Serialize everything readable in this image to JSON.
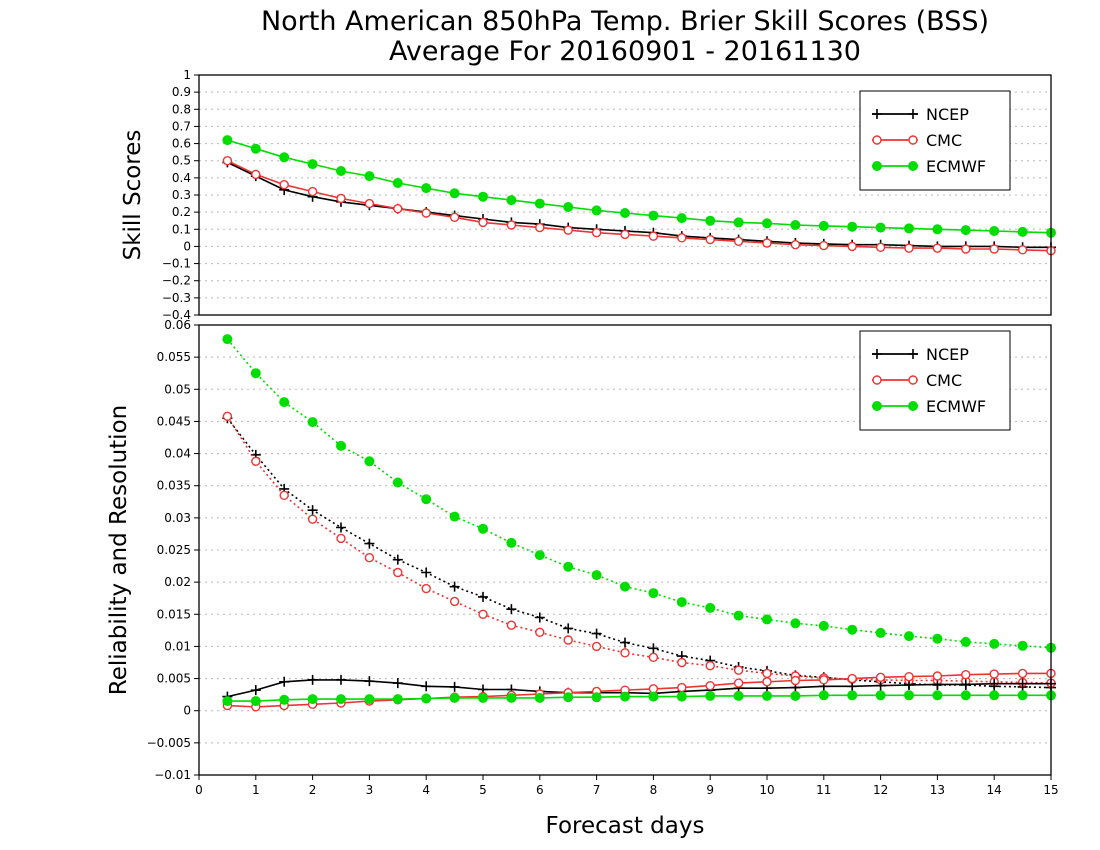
{
  "chart_data": {
    "title": "North American 850hPa Temp. Brier Skill Scores (BSS)",
    "subtitle": "Average For 20160901 - 20161130",
    "xlabel": "Forecast days",
    "x": [
      0.5,
      1,
      1.5,
      2,
      2.5,
      3,
      3.5,
      4,
      4.5,
      5,
      5.5,
      6,
      6.5,
      7,
      7.5,
      8,
      8.5,
      9,
      9.5,
      10,
      10.5,
      11,
      11.5,
      12,
      12.5,
      13,
      13.5,
      14,
      14.5,
      15
    ],
    "xlim": [
      0,
      15
    ],
    "xticks": [
      "0",
      "1",
      "2",
      "3",
      "4",
      "5",
      "6",
      "7",
      "8",
      "9",
      "10",
      "11",
      "12",
      "13",
      "14",
      "15"
    ],
    "panels": [
      {
        "type": "line",
        "ylabel": "Skill Scores",
        "ylim": [
          -0.4,
          1
        ],
        "yticks": [
          "−0.4",
          "−0.3",
          "−0.2",
          "−0.1",
          "0",
          "0.1",
          "0.2",
          "0.3",
          "0.4",
          "0.5",
          "0.6",
          "0.7",
          "0.8",
          "0.9",
          "1"
        ],
        "grid": true,
        "legend_position": "top-right",
        "series": [
          {
            "name": "NCEP",
            "color": "#000000",
            "marker": "plus",
            "line": "solid",
            "values": [
              0.49,
              0.41,
              0.33,
              0.29,
              0.26,
              0.24,
              0.22,
              0.2,
              0.18,
              0.16,
              0.14,
              0.13,
              0.11,
              0.1,
              0.09,
              0.08,
              0.06,
              0.05,
              0.04,
              0.03,
              0.02,
              0.015,
              0.01,
              0.01,
              0.005,
              0.0,
              0.0,
              0.0,
              -0.005,
              -0.005
            ]
          },
          {
            "name": "CMC",
            "color": "#ee3333",
            "marker": "open-circle",
            "line": "solid",
            "values": [
              0.5,
              0.42,
              0.36,
              0.32,
              0.28,
              0.25,
              0.22,
              0.195,
              0.17,
              0.14,
              0.125,
              0.11,
              0.095,
              0.08,
              0.07,
              0.06,
              0.05,
              0.04,
              0.03,
              0.02,
              0.01,
              0.005,
              0.0,
              -0.005,
              -0.01,
              -0.01,
              -0.015,
              -0.015,
              -0.02,
              -0.025
            ]
          },
          {
            "name": "ECMWF",
            "color": "#00dd00",
            "marker": "filled-circle",
            "line": "solid",
            "values": [
              0.62,
              0.57,
              0.52,
              0.48,
              0.44,
              0.41,
              0.37,
              0.34,
              0.31,
              0.29,
              0.27,
              0.25,
              0.23,
              0.21,
              0.195,
              0.18,
              0.165,
              0.15,
              0.14,
              0.135,
              0.125,
              0.12,
              0.115,
              0.11,
              0.105,
              0.1,
              0.095,
              0.09,
              0.085,
              0.08
            ]
          }
        ]
      },
      {
        "type": "line",
        "ylabel": "Reliability and Resolution",
        "ylim": [
          -0.01,
          0.06
        ],
        "yticks": [
          "−0.01",
          "−0.005",
          "0",
          "0.005",
          "0.01",
          "0.015",
          "0.02",
          "0.025",
          "0.03",
          "0.035",
          "0.04",
          "0.045",
          "0.05",
          "0.055",
          "0.06"
        ],
        "grid": true,
        "legend_position": "top-right",
        "series": [
          {
            "name": "NCEP",
            "role": "resolution",
            "color": "#000000",
            "marker": "plus",
            "line": "dotted",
            "values": [
              0.0455,
              0.0398,
              0.0345,
              0.0312,
              0.0285,
              0.026,
              0.0235,
              0.0215,
              0.0193,
              0.0177,
              0.0158,
              0.0145,
              0.0128,
              0.012,
              0.0106,
              0.0097,
              0.0085,
              0.0078,
              0.0068,
              0.0062,
              0.0055,
              0.0052,
              0.0048,
              0.0045,
              0.0042,
              0.004,
              0.004,
              0.0038,
              0.0037,
              0.0036
            ]
          },
          {
            "name": "CMC",
            "role": "resolution",
            "color": "#ee3333",
            "marker": "open-circle",
            "line": "dotted",
            "values": [
              0.0458,
              0.0388,
              0.0335,
              0.0298,
              0.0268,
              0.0238,
              0.0215,
              0.019,
              0.017,
              0.015,
              0.0133,
              0.0122,
              0.011,
              0.01,
              0.009,
              0.0083,
              0.0075,
              0.007,
              0.0063,
              0.0058,
              0.0054,
              0.0051,
              0.0049,
              0.0048,
              0.0047,
              0.0047,
              0.0046,
              0.0045,
              0.0044,
              0.0043
            ]
          },
          {
            "name": "ECMWF",
            "role": "resolution",
            "color": "#00dd00",
            "marker": "filled-circle",
            "line": "dotted",
            "values": [
              0.0578,
              0.0525,
              0.048,
              0.0449,
              0.0412,
              0.0388,
              0.0355,
              0.0329,
              0.0302,
              0.0283,
              0.0261,
              0.0242,
              0.0224,
              0.0211,
              0.0193,
              0.0183,
              0.0169,
              0.016,
              0.0148,
              0.0142,
              0.0136,
              0.0132,
              0.0126,
              0.0121,
              0.0116,
              0.0112,
              0.0107,
              0.0104,
              0.0101,
              0.0098
            ]
          },
          {
            "name": "NCEP",
            "role": "reliability",
            "color": "#000000",
            "marker": "plus",
            "line": "solid",
            "values": [
              0.0022,
              0.0032,
              0.0045,
              0.0048,
              0.0048,
              0.0046,
              0.0043,
              0.0038,
              0.0037,
              0.0033,
              0.0033,
              0.003,
              0.0028,
              0.0028,
              0.0028,
              0.0027,
              0.003,
              0.0032,
              0.0035,
              0.0035,
              0.0036,
              0.0038,
              0.0038,
              0.0039,
              0.004,
              0.0041,
              0.0041,
              0.0042,
              0.0042,
              0.0042
            ]
          },
          {
            "name": "CMC",
            "role": "reliability",
            "color": "#ee3333",
            "marker": "open-circle",
            "line": "solid",
            "values": [
              0.0008,
              0.0006,
              0.0008,
              0.001,
              0.0012,
              0.0015,
              0.0017,
              0.0019,
              0.0021,
              0.0022,
              0.0024,
              0.0026,
              0.0028,
              0.003,
              0.0032,
              0.0034,
              0.0036,
              0.0039,
              0.0043,
              0.0045,
              0.0047,
              0.0048,
              0.005,
              0.0052,
              0.0053,
              0.0054,
              0.0056,
              0.0057,
              0.0058,
              0.0058
            ]
          },
          {
            "name": "ECMWF",
            "role": "reliability",
            "color": "#00dd00",
            "marker": "filled-circle",
            "line": "solid",
            "values": [
              0.0015,
              0.0015,
              0.0017,
              0.0018,
              0.0018,
              0.0018,
              0.0018,
              0.0019,
              0.002,
              0.002,
              0.002,
              0.002,
              0.0021,
              0.0021,
              0.0022,
              0.0022,
              0.0022,
              0.0023,
              0.0023,
              0.0023,
              0.0023,
              0.0024,
              0.0024,
              0.0024,
              0.0024,
              0.0024,
              0.0024,
              0.0024,
              0.0024,
              0.0024
            ]
          }
        ]
      }
    ],
    "legend": [
      {
        "name": "NCEP",
        "color": "#000000",
        "marker": "plus"
      },
      {
        "name": "CMC",
        "color": "#ee3333",
        "marker": "open-circle"
      },
      {
        "name": "ECMWF",
        "color": "#00dd00",
        "marker": "filled-circle"
      }
    ]
  }
}
